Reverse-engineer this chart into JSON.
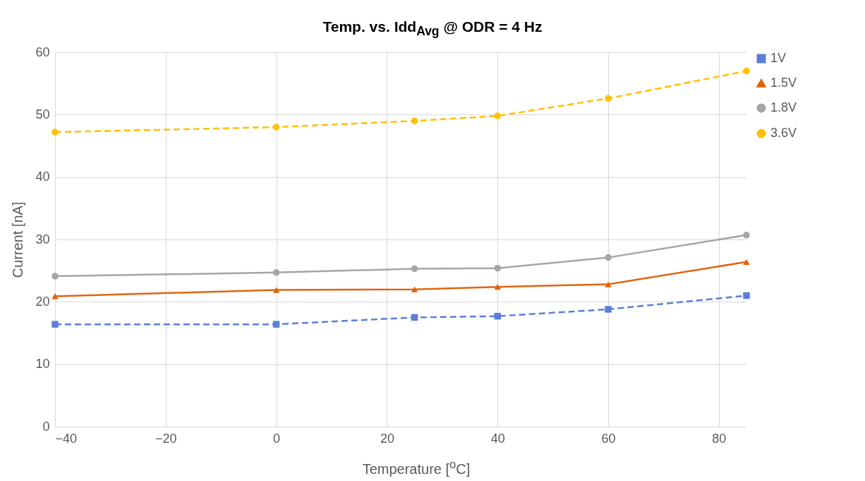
{
  "chart_data": {
    "type": "line",
    "title": "Temp. vs. Idd$_{Avg}$ @ ODR = 4 Hz",
    "xlabel": "Temperature [$^{o}$C]",
    "ylabel": "Current [nA]",
    "x": [
      -40,
      0,
      25,
      40,
      60,
      85
    ],
    "series": [
      {
        "name": "1V",
        "color": "#5b7fd6",
        "marker": "square",
        "line_style": "dashed",
        "values": [
          16.4,
          16.4,
          17.5,
          17.7,
          18.8,
          21.0
        ]
      },
      {
        "name": "1.5V",
        "color": "#e0640f",
        "marker": "triangle",
        "line_style": "solid",
        "values": [
          20.9,
          21.9,
          22.0,
          22.4,
          22.8,
          26.4
        ]
      },
      {
        "name": "1.8V",
        "color": "#a5a5a5",
        "marker": "circle",
        "line_style": "solid",
        "values": [
          24.1,
          24.7,
          25.3,
          25.4,
          27.1,
          30.7
        ]
      },
      {
        "name": "3.6V",
        "color": "#ffc000",
        "marker": "circle",
        "line_style": "dashed",
        "values": [
          47.2,
          48.0,
          49.0,
          49.8,
          52.6,
          57.0
        ]
      }
    ],
    "xlim": [
      -40,
      85
    ],
    "xticks": [
      -40,
      -20,
      0,
      20,
      40,
      60,
      80
    ],
    "ylim": [
      0,
      60
    ],
    "yticks": [
      0,
      10,
      20,
      30,
      40,
      50,
      60
    ],
    "grid": true,
    "legend": "right"
  }
}
